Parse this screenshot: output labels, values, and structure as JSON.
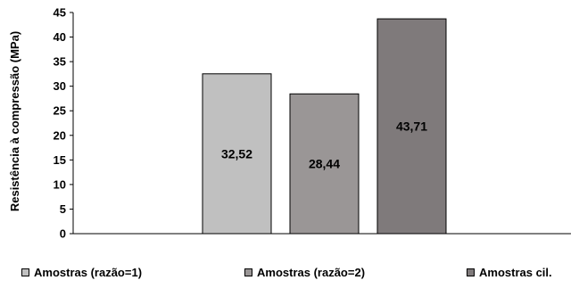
{
  "chart_data": {
    "type": "bar",
    "title": "",
    "xlabel": "",
    "ylabel": "Resistência à compressão (MPa)",
    "ylim": [
      0,
      45
    ],
    "yticks": [
      0,
      5,
      10,
      15,
      20,
      25,
      30,
      35,
      40,
      45
    ],
    "grid": false,
    "legend_position": "bottom",
    "series": [
      {
        "name": "Amostras (razão=1)",
        "value": 32.52,
        "label": "32,52",
        "color": "#c0c0c0"
      },
      {
        "name": "Amostras (razão=2)",
        "value": 28.44,
        "label": "28,44",
        "color": "#9a9696"
      },
      {
        "name": "Amostras cil.",
        "value": 43.71,
        "label": "43,71",
        "color": "#7f7a7b"
      }
    ]
  }
}
